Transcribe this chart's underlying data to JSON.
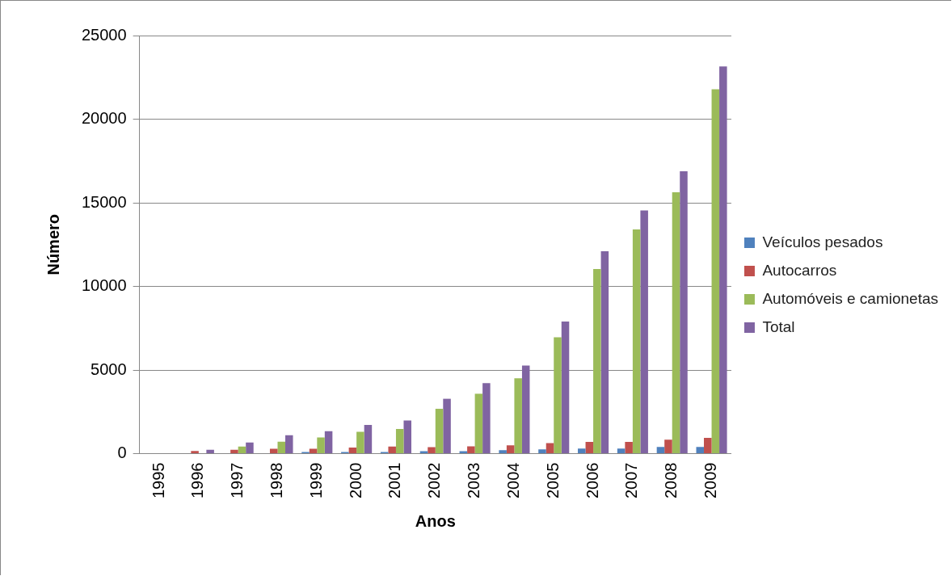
{
  "chart_data": {
    "type": "bar",
    "xlabel": "Anos",
    "ylabel": "Número",
    "categories": [
      "1995",
      "1996",
      "1997",
      "1998",
      "1999",
      "2000",
      "2001",
      "2002",
      "2003",
      "2004",
      "2005",
      "2006",
      "2007",
      "2008",
      "2009"
    ],
    "series": [
      {
        "name": "Veículos pesados",
        "color": "#4f81bd",
        "values": [
          0,
          0,
          0,
          0,
          100,
          100,
          100,
          150,
          150,
          200,
          250,
          300,
          300,
          400,
          400
        ]
      },
      {
        "name": "Autocarros",
        "color": "#c0504d",
        "values": [
          0,
          160,
          230,
          290,
          290,
          360,
          420,
          390,
          440,
          500,
          630,
          700,
          700,
          830,
          940
        ]
      },
      {
        "name": "Automóveis e camionetas",
        "color": "#9bbb59",
        "values": [
          0,
          0,
          420,
          710,
          970,
          1300,
          1470,
          2680,
          3580,
          4500,
          6960,
          11040,
          13410,
          15630,
          21790
        ]
      },
      {
        "name": "Total",
        "color": "#8064a2",
        "values": [
          0,
          230,
          660,
          1100,
          1340,
          1710,
          1980,
          3280,
          4210,
          5270,
          7900,
          12100,
          14540,
          16890,
          23150
        ]
      }
    ],
    "ylim": [
      0,
      25000
    ],
    "yticks": [
      0,
      5000,
      10000,
      15000,
      20000,
      25000
    ],
    "grid": "y",
    "legend": "right"
  }
}
